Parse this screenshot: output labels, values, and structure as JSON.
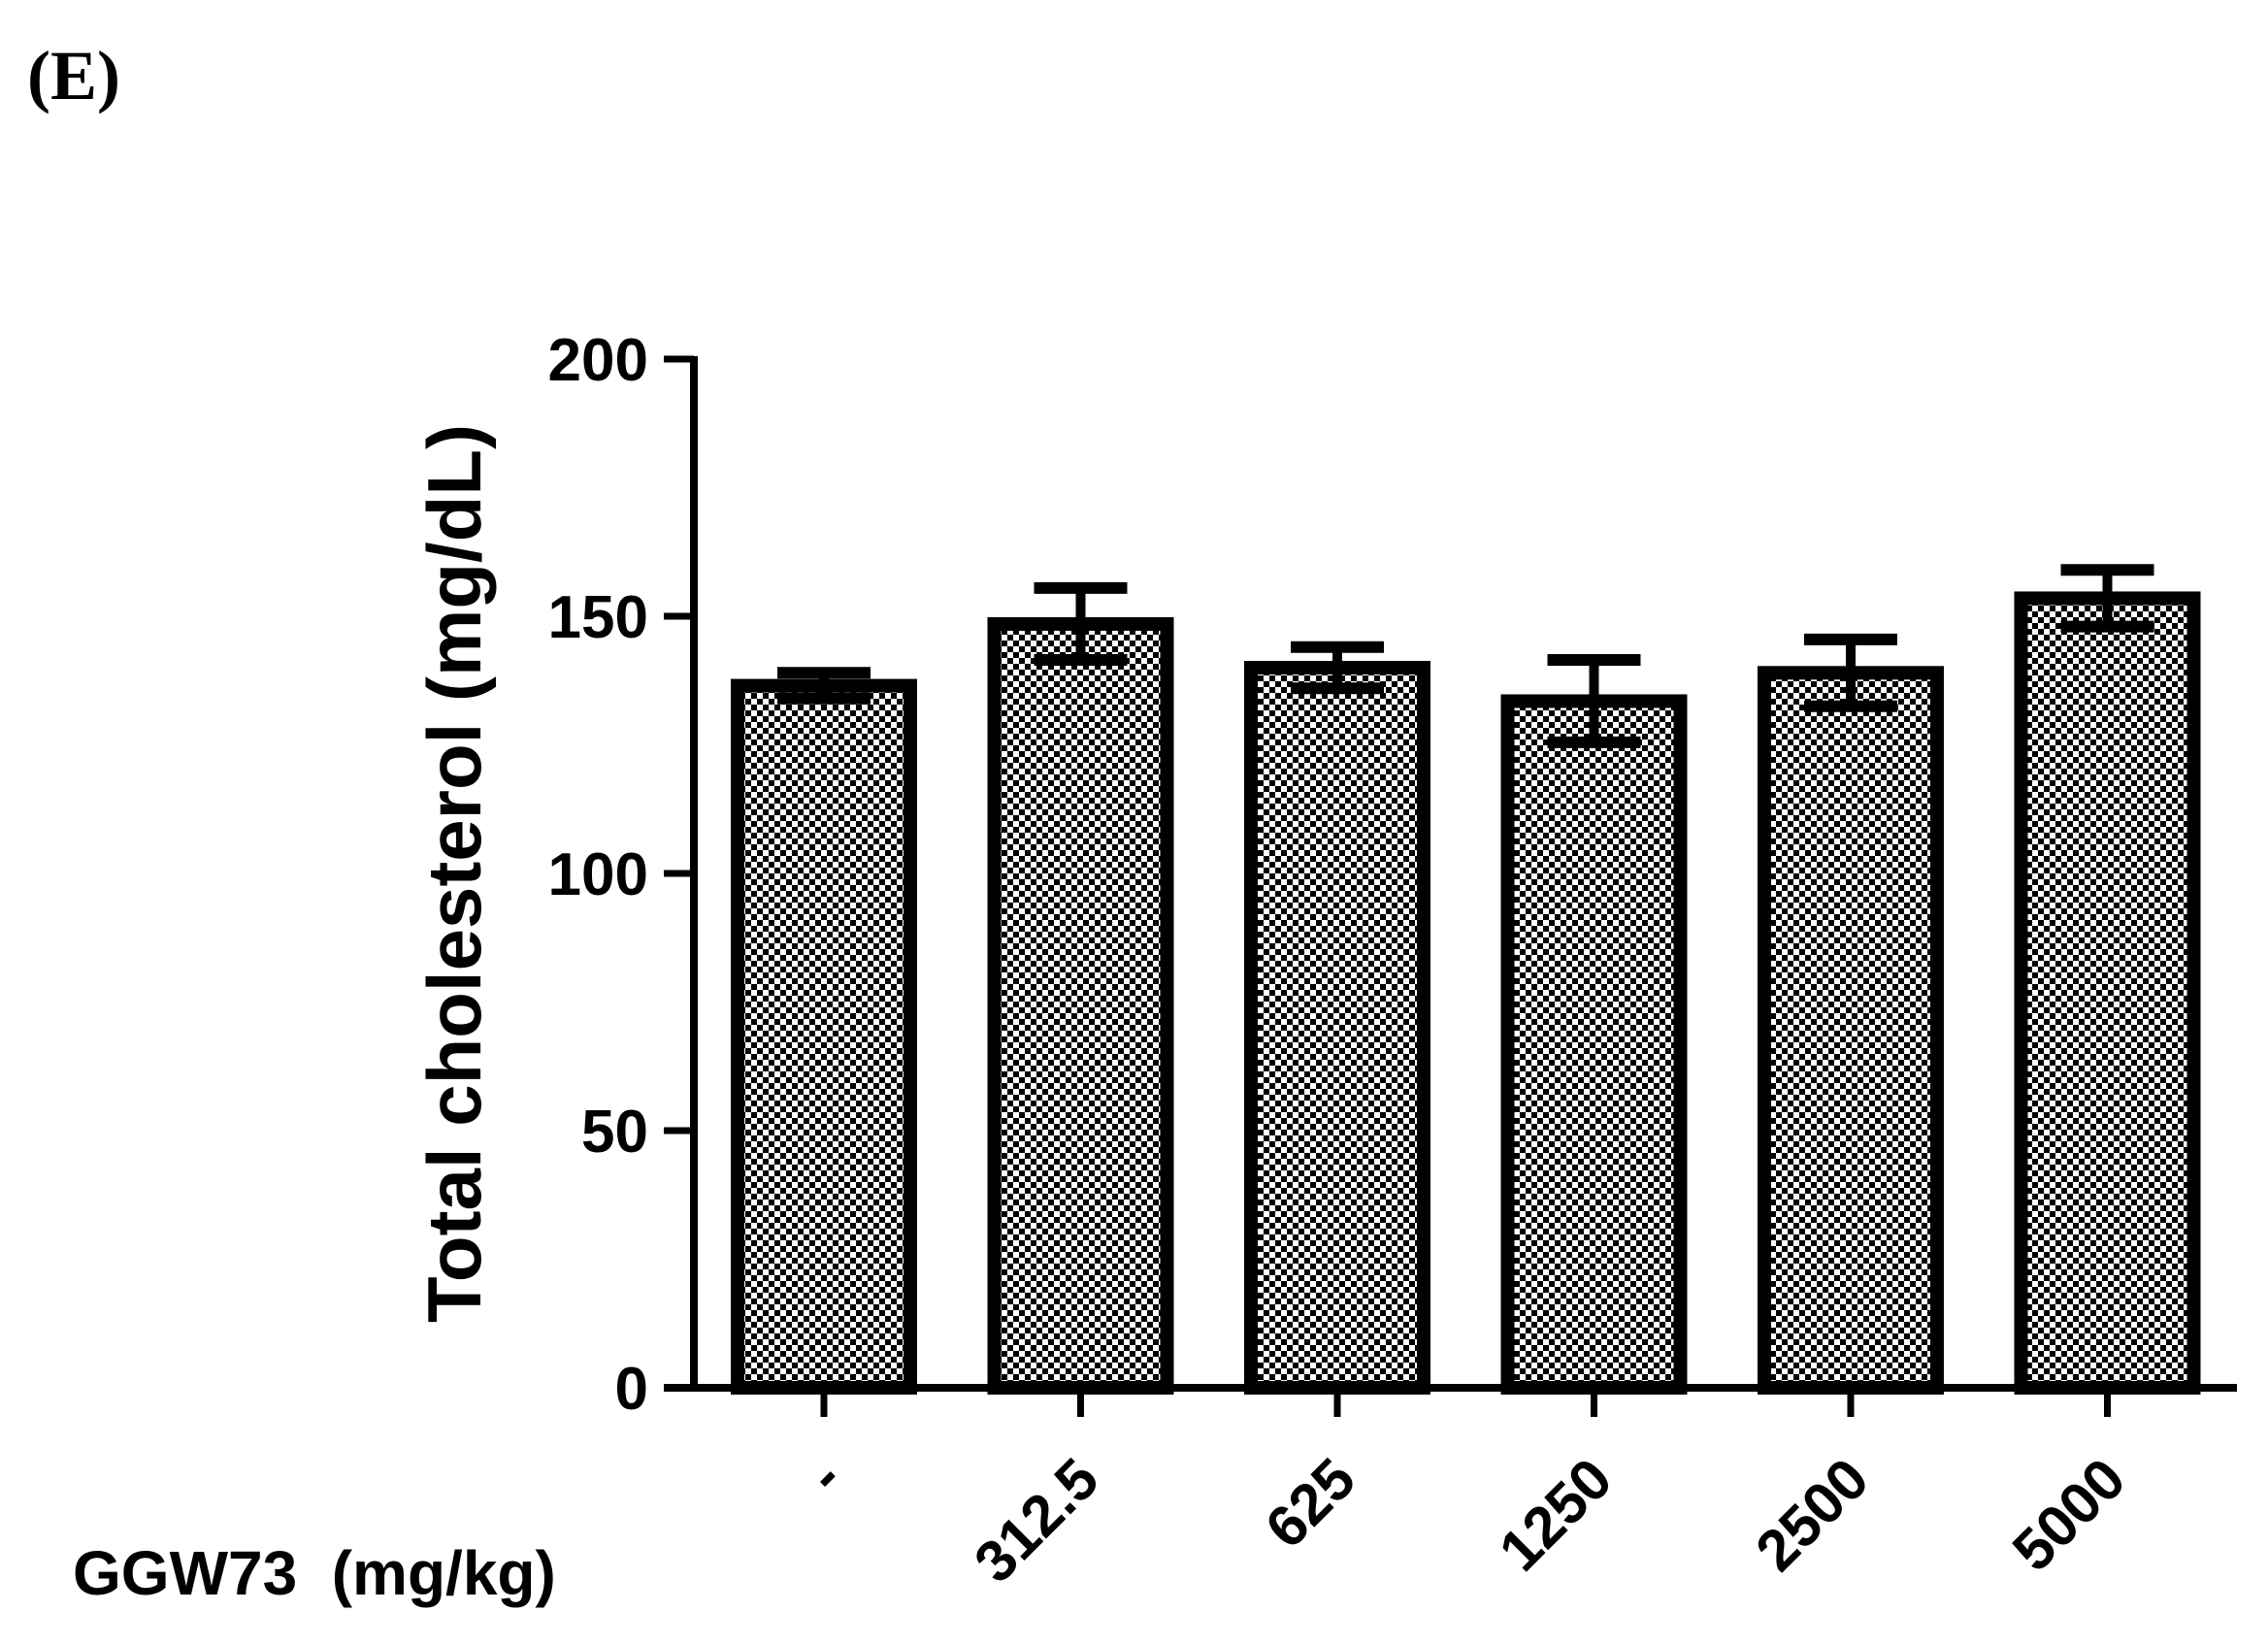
{
  "panel_label": "(E)",
  "chart_data": {
    "type": "bar",
    "title": "",
    "xlabel": "GGW73  (mg/kg)",
    "ylabel": "Total cholesterol (mg/dL)",
    "ylim": [
      0,
      200
    ],
    "yticks": [
      0,
      50,
      100,
      150,
      200
    ],
    "ytick_labels": [
      "0",
      "50",
      "100",
      "150",
      "200"
    ],
    "categories": [
      "-",
      "312.5",
      "625",
      "1250",
      "2500",
      "5000"
    ],
    "values": [
      136.5,
      148.5,
      140,
      133.5,
      139,
      153.5
    ],
    "errors": [
      2.5,
      7,
      4,
      8,
      6.5,
      5.5
    ],
    "bar_pattern": "checkered black and white",
    "grid": false,
    "legend": "none"
  }
}
